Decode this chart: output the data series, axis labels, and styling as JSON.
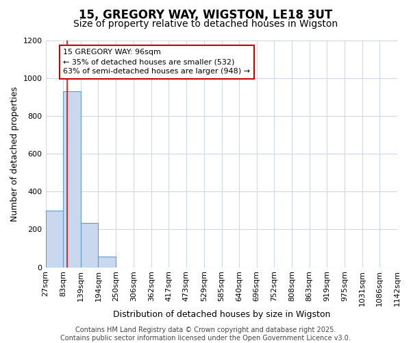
{
  "title": "15, GREGORY WAY, WIGSTON, LE18 3UT",
  "subtitle": "Size of property relative to detached houses in Wigston",
  "xlabel": "Distribution of detached houses by size in Wigston",
  "ylabel": "Number of detached properties",
  "bin_edges": [
    27,
    83,
    139,
    194,
    250,
    306,
    362,
    417,
    473,
    529,
    585,
    640,
    696,
    752,
    808,
    863,
    919,
    975,
    1031,
    1086,
    1142
  ],
  "bar_heights": [
    300,
    930,
    235,
    55,
    0,
    0,
    0,
    0,
    0,
    0,
    0,
    0,
    0,
    0,
    0,
    0,
    0,
    0,
    0,
    0
  ],
  "bar_color": "#c8d9ef",
  "bar_edge_color": "#6699cc",
  "red_line_x": 96,
  "ylim": [
    0,
    1200
  ],
  "yticks": [
    0,
    200,
    400,
    600,
    800,
    1000,
    1200
  ],
  "annotation_line1": "15 GREGORY WAY: 96sqm",
  "annotation_line2": "← 35% of detached houses are smaller (532)",
  "annotation_line3": "63% of semi-detached houses are larger (948) →",
  "annotation_box_facecolor": "#ffffff",
  "annotation_box_edgecolor": "#cc0000",
  "footer_line1": "Contains HM Land Registry data © Crown copyright and database right 2025.",
  "footer_line2": "Contains public sector information licensed under the Open Government Licence v3.0.",
  "background_color": "#ffffff",
  "plot_background": "#ffffff",
  "grid_color": "#d0d8e8",
  "title_fontsize": 12,
  "subtitle_fontsize": 10,
  "tick_fontsize": 8,
  "ylabel_fontsize": 9,
  "xlabel_fontsize": 9,
  "annotation_fontsize": 8,
  "footer_fontsize": 7
}
